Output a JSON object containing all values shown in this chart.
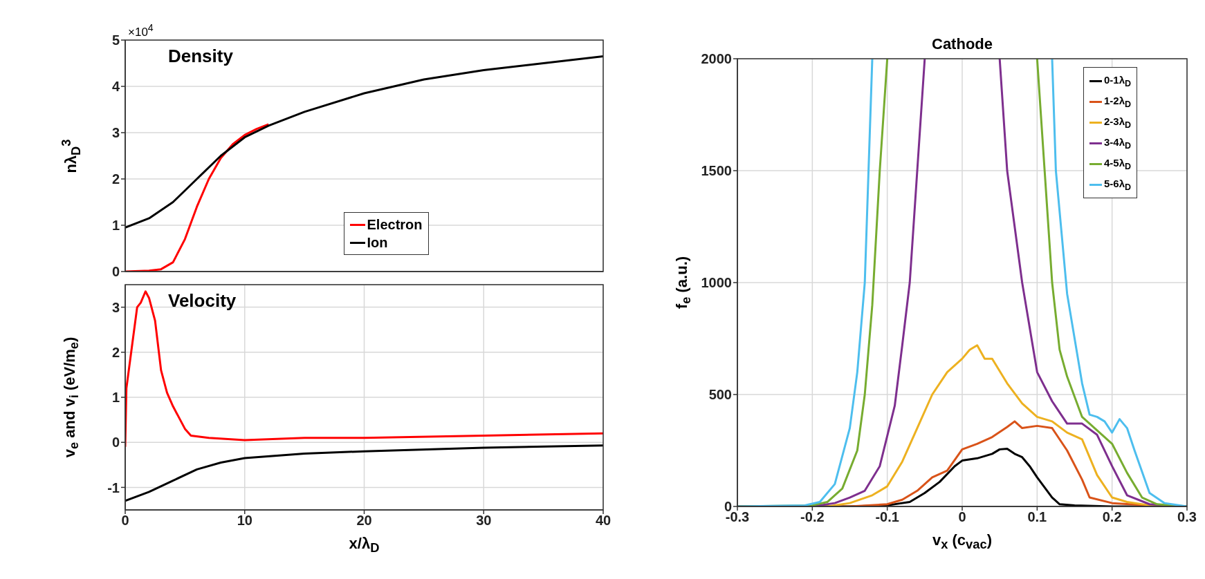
{
  "chart_data": [
    {
      "type": "line",
      "title": "Density",
      "ylabel": "nλ$_{D}$$^{3}$",
      "annotations": [
        "×10$^{4}$"
      ],
      "xlim": [
        0,
        40
      ],
      "xticks": [
        0,
        10,
        20,
        30,
        40
      ],
      "ylim": [
        0,
        5
      ],
      "yticks": [
        0,
        1,
        2,
        3,
        4,
        5
      ],
      "tick_labels": "y",
      "grid": true,
      "legend": "bottom",
      "series": [
        {
          "name": "Electron",
          "color": "#ff0000",
          "x": [
            0,
            2,
            3,
            4,
            5,
            6,
            7,
            8,
            9,
            10,
            11,
            12
          ],
          "values": [
            0,
            0.02,
            0.05,
            0.2,
            0.7,
            1.4,
            2.0,
            2.45,
            2.75,
            2.95,
            3.08,
            3.18
          ]
        },
        {
          "name": "Ion",
          "color": "#000000",
          "x": [
            0,
            2,
            4,
            6,
            8,
            10,
            12,
            15,
            20,
            25,
            30,
            35,
            40
          ],
          "values": [
            0.95,
            1.15,
            1.5,
            2.0,
            2.5,
            2.9,
            3.15,
            3.45,
            3.85,
            4.15,
            4.35,
            4.5,
            4.65
          ]
        }
      ]
    },
    {
      "type": "line",
      "title": "Velocity",
      "xlabel": "x/λ$_{D}$",
      "ylabel": "v$_{e}$ and v$_{i}$ (eV/m$_{e}$)",
      "xlim": [
        0,
        40
      ],
      "xticks": [
        0,
        10,
        20,
        30,
        40
      ],
      "ylim": [
        -1.5,
        3.5
      ],
      "yticks": [
        -1,
        0,
        1,
        2,
        3
      ],
      "grid": true,
      "series": [
        {
          "color": "#ff0000",
          "x": [
            0,
            0.1,
            0.5,
            1,
            1.3,
            1.7,
            2,
            2.5,
            3,
            3.5,
            4,
            5,
            5.5,
            7,
            10,
            15,
            20,
            30,
            40
          ],
          "values": [
            -0.1,
            1.2,
            2.0,
            3.0,
            3.1,
            3.35,
            3.2,
            2.7,
            1.6,
            1.1,
            0.8,
            0.3,
            0.15,
            0.1,
            0.05,
            0.1,
            0.1,
            0.15,
            0.2
          ]
        },
        {
          "color": "#000000",
          "x": [
            0,
            2,
            4,
            6,
            8,
            10,
            15,
            20,
            30,
            40
          ],
          "values": [
            -1.3,
            -1.1,
            -0.85,
            -0.6,
            -0.45,
            -0.35,
            -0.25,
            -0.2,
            -0.12,
            -0.07
          ]
        }
      ]
    },
    {
      "type": "line",
      "title": "Cathode",
      "xlabel": "v$_{x}$ (c$_{vac}$)",
      "ylabel": "f$_{e}$ (a.u.)",
      "xlim": [
        -0.3,
        0.3
      ],
      "xticks": [
        -0.3,
        -0.2,
        -0.1,
        0,
        0.1,
        0.2,
        0.3
      ],
      "ylim": [
        0,
        2000
      ],
      "yticks": [
        0,
        500,
        1000,
        1500,
        2000
      ],
      "grid": true,
      "legend": "top right",
      "series": [
        {
          "name": "0-1λ$_{D}$",
          "color": "#000000",
          "x": [
            -0.3,
            -0.15,
            -0.1,
            -0.07,
            -0.05,
            -0.03,
            -0.01,
            0,
            0.02,
            0.04,
            0.05,
            0.06,
            0.07,
            0.08,
            0.09,
            0.1,
            0.12,
            0.13,
            0.15,
            0.2,
            0.3
          ],
          "values": [
            0,
            0,
            5,
            20,
            60,
            110,
            180,
            205,
            215,
            235,
            255,
            258,
            235,
            220,
            180,
            130,
            40,
            10,
            5,
            0,
            0
          ]
        },
        {
          "name": "1-2λ$_{D}$",
          "color": "#d95319",
          "x": [
            -0.3,
            -0.15,
            -0.1,
            -0.08,
            -0.06,
            -0.04,
            -0.02,
            0,
            0.02,
            0.04,
            0.06,
            0.07,
            0.08,
            0.1,
            0.12,
            0.14,
            0.16,
            0.17,
            0.2,
            0.25,
            0.3
          ],
          "values": [
            0,
            0,
            10,
            30,
            70,
            130,
            160,
            255,
            280,
            310,
            355,
            380,
            350,
            360,
            350,
            250,
            120,
            40,
            15,
            5,
            0
          ]
        },
        {
          "name": "2-3λ$_{D}$",
          "color": "#edb120",
          "x": [
            -0.3,
            -0.18,
            -0.15,
            -0.12,
            -0.1,
            -0.08,
            -0.06,
            -0.04,
            -0.02,
            0,
            0.01,
            0.02,
            0.03,
            0.04,
            0.06,
            0.08,
            0.1,
            0.12,
            0.14,
            0.16,
            0.18,
            0.2,
            0.22,
            0.25,
            0.3
          ],
          "values": [
            0,
            0,
            15,
            50,
            90,
            200,
            350,
            500,
            600,
            660,
            700,
            720,
            660,
            660,
            550,
            460,
            400,
            380,
            330,
            300,
            140,
            40,
            20,
            5,
            0
          ]
        },
        {
          "name": "3-4λ$_{D}$",
          "color": "#7e2f8e",
          "x": [
            -0.3,
            -0.2,
            -0.17,
            -0.15,
            -0.13,
            -0.11,
            -0.09,
            -0.08,
            -0.07,
            -0.06,
            -0.05,
            0,
            0.05,
            0.06,
            0.08,
            0.1,
            0.12,
            0.14,
            0.16,
            0.18,
            0.2,
            0.22,
            0.25,
            0.3
          ],
          "values": [
            0,
            0,
            15,
            40,
            70,
            180,
            450,
            720,
            1000,
            1500,
            2000,
            null,
            2000,
            1500,
            1000,
            600,
            470,
            370,
            370,
            320,
            180,
            50,
            10,
            0
          ]
        },
        {
          "name": "4-5λ$_{D}$",
          "color": "#77ac30",
          "x": [
            -0.3,
            -0.2,
            -0.18,
            -0.16,
            -0.14,
            -0.13,
            -0.12,
            -0.11,
            -0.1,
            0,
            0.1,
            0.11,
            0.12,
            0.13,
            0.14,
            0.16,
            0.18,
            0.2,
            0.22,
            0.24,
            0.26,
            0.3
          ],
          "values": [
            0,
            5,
            20,
            80,
            250,
            500,
            900,
            1500,
            2000,
            null,
            2000,
            1500,
            1000,
            700,
            580,
            400,
            340,
            280,
            150,
            40,
            10,
            0
          ]
        },
        {
          "name": "5-6λ$_{D}$",
          "color": "#4dbeee",
          "x": [
            -0.3,
            -0.21,
            -0.19,
            -0.17,
            -0.15,
            -0.14,
            -0.13,
            -0.125,
            -0.12,
            0,
            0.12,
            0.125,
            0.14,
            0.15,
            0.16,
            0.17,
            0.18,
            0.19,
            0.2,
            0.21,
            0.22,
            0.23,
            0.25,
            0.27,
            0.3
          ],
          "values": [
            0,
            5,
            20,
            100,
            350,
            600,
            1000,
            1500,
            2000,
            null,
            2000,
            1500,
            950,
            750,
            550,
            410,
            400,
            380,
            330,
            390,
            350,
            250,
            60,
            15,
            0
          ]
        }
      ]
    }
  ]
}
